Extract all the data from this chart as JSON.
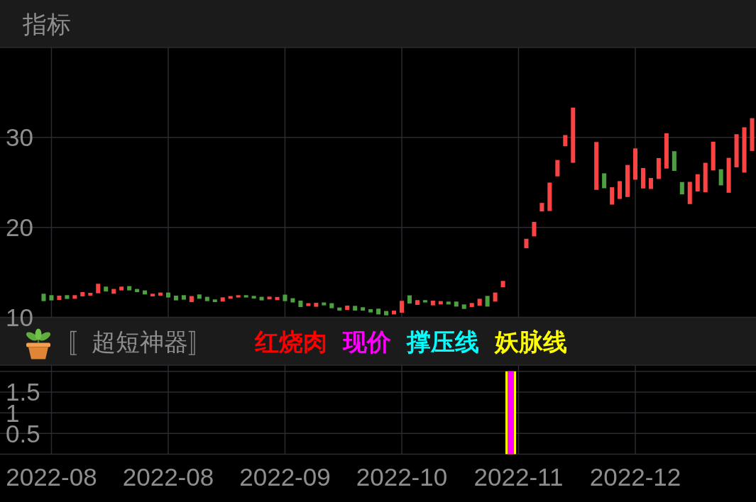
{
  "chart_data": [
    {
      "type": "candlestick",
      "title": "指标",
      "categories": [
        null,
        "2022-08",
        null,
        null,
        null,
        null,
        null,
        null,
        null,
        null,
        null,
        null,
        null,
        null,
        null,
        null,
        "2022-08",
        null,
        null,
        null,
        null,
        null,
        null,
        null,
        null,
        null,
        null,
        null,
        null,
        null,
        null,
        "2022-09",
        null,
        null,
        null,
        null,
        null,
        null,
        null,
        null,
        null,
        null,
        null,
        null,
        null,
        null,
        "2022-10",
        null,
        null,
        null,
        null,
        null,
        null,
        null,
        null,
        null,
        null,
        null,
        null,
        null,
        null,
        "2022-11",
        null,
        null,
        null,
        null,
        null,
        null,
        null,
        null,
        null,
        null,
        null,
        null,
        null,
        null,
        "2022-12",
        null,
        null,
        null,
        null,
        null,
        null,
        null,
        null,
        null,
        null,
        null,
        null,
        null,
        null,
        null
      ],
      "ohlc": [
        [
          12.62,
          12.62,
          11.8,
          11.8
        ],
        [
          12.46,
          12.46,
          11.88,
          11.88
        ],
        [
          11.93,
          12.41,
          11.93,
          12.41
        ],
        [
          12.46,
          12.46,
          12.04,
          12.04
        ],
        [
          12.06,
          12.46,
          12.06,
          12.46
        ],
        [
          12.33,
          12.8,
          12.33,
          12.8
        ],
        [
          12.41,
          12.72,
          12.41,
          12.72
        ],
        [
          12.67,
          13.73,
          12.67,
          13.73
        ],
        [
          13.41,
          13.41,
          12.88,
          12.88
        ],
        [
          12.62,
          13.15,
          12.62,
          13.15
        ],
        [
          12.99,
          13.41,
          12.99,
          13.41
        ],
        [
          13.47,
          13.47,
          12.99,
          12.99
        ],
        [
          13.15,
          13.15,
          12.8,
          12.8
        ],
        [
          12.99,
          12.99,
          12.54,
          12.54
        ],
        [
          12.33,
          12.62,
          12.33,
          12.62
        ],
        [
          12.41,
          12.75,
          12.41,
          12.75
        ],
        [
          12.75,
          12.75,
          12.2,
          12.2
        ],
        [
          12.41,
          12.41,
          11.88,
          11.88
        ],
        [
          12.46,
          12.46,
          11.96,
          11.96
        ],
        [
          11.69,
          12.36,
          11.69,
          12.36
        ],
        [
          12.54,
          12.54,
          12.06,
          12.06
        ],
        [
          12.28,
          12.28,
          11.8,
          11.8
        ],
        [
          11.99,
          11.99,
          11.69,
          11.69
        ],
        [
          11.75,
          12.22,
          11.75,
          12.22
        ],
        [
          12.06,
          12.36,
          12.06,
          12.36
        ],
        [
          12.2,
          12.46,
          12.2,
          12.46
        ],
        [
          12.46,
          12.46,
          12.2,
          12.2
        ],
        [
          12.38,
          12.38,
          12.09,
          12.09
        ],
        [
          12.28,
          12.28,
          11.88,
          11.88
        ],
        [
          11.99,
          12.3,
          11.99,
          12.3
        ],
        [
          11.91,
          12.26,
          11.91,
          12.26
        ],
        [
          12.52,
          12.52,
          11.8,
          11.8
        ],
        [
          12.12,
          12.12,
          11.65,
          11.65
        ],
        [
          11.85,
          11.85,
          11.14,
          11.14
        ],
        [
          11.25,
          11.57,
          11.25,
          11.57
        ],
        [
          11.17,
          11.61,
          11.17,
          11.61
        ],
        [
          11.65,
          11.65,
          11.33,
          11.33
        ],
        [
          11.57,
          11.57,
          11.01,
          11.01
        ],
        [
          11.09,
          11.09,
          10.74,
          10.74
        ],
        [
          10.82,
          11.3,
          10.82,
          11.3
        ],
        [
          11.27,
          11.27,
          10.74,
          10.74
        ],
        [
          11.12,
          11.12,
          10.74,
          10.74
        ],
        [
          10.9,
          10.9,
          10.54,
          10.54
        ],
        [
          10.96,
          10.96,
          10.32,
          10.32
        ],
        [
          10.7,
          10.7,
          10.22,
          10.22
        ],
        [
          10.32,
          10.74,
          10.32,
          10.74
        ],
        [
          10.51,
          11.83,
          10.51,
          11.83
        ],
        [
          12.44,
          12.44,
          11.53,
          11.53
        ],
        [
          11.38,
          11.91,
          11.38,
          11.91
        ],
        [
          11.91,
          11.91,
          11.65,
          11.65
        ],
        [
          11.33,
          11.85,
          11.33,
          11.85
        ],
        [
          11.43,
          11.8,
          11.43,
          11.8
        ],
        [
          11.75,
          11.75,
          11.43,
          11.43
        ],
        [
          11.75,
          11.75,
          11.19,
          11.19
        ],
        [
          11.43,
          11.43,
          10.93,
          10.93
        ],
        [
          11.14,
          11.59,
          11.14,
          11.59
        ],
        [
          11.3,
          12.06,
          11.3,
          12.06
        ],
        [
          12.38,
          12.38,
          11.19,
          11.19
        ],
        [
          11.75,
          12.75,
          11.75,
          12.75
        ],
        [
          13.35,
          14.04,
          13.35,
          14.04
        ],
        null,
        null,
        [
          17.68,
          18.73,
          17.68,
          18.73
        ],
        [
          19.0,
          20.61,
          19.0,
          20.61
        ],
        [
          21.77,
          22.72,
          21.77,
          22.72
        ],
        [
          21.82,
          24.98,
          21.82,
          24.98
        ],
        [
          25.67,
          27.49,
          25.67,
          27.49
        ],
        [
          29.02,
          30.26,
          29.02,
          30.26
        ],
        [
          27.18,
          33.32,
          27.18,
          33.32
        ],
        null,
        null,
        [
          24.17,
          29.49,
          24.17,
          29.49
        ],
        [
          26.01,
          26.01,
          24.35,
          24.35
        ],
        [
          22.53,
          24.46,
          22.53,
          24.46
        ],
        [
          23.16,
          25.14,
          23.16,
          25.14
        ],
        [
          23.38,
          26.94,
          23.38,
          26.94
        ],
        [
          25.3,
          28.78,
          25.3,
          28.78
        ],
        [
          24.33,
          26.6,
          24.33,
          26.6
        ],
        [
          24.27,
          25.49,
          24.27,
          25.49
        ],
        [
          25.38,
          27.71,
          25.38,
          27.71
        ],
        [
          26.54,
          30.47,
          26.54,
          30.47
        ],
        [
          28.47,
          28.47,
          26.28,
          26.28
        ],
        [
          25.04,
          25.04,
          23.67,
          23.67
        ],
        [
          22.59,
          25.06,
          22.59,
          25.06
        ],
        [
          23.99,
          25.91,
          23.99,
          25.91
        ],
        [
          23.91,
          27.18,
          23.91,
          27.18
        ],
        [
          26.33,
          29.53,
          26.33,
          29.53
        ],
        [
          26.46,
          26.46,
          24.67,
          24.67
        ],
        [
          23.85,
          27.73,
          23.85,
          27.73
        ],
        [
          26.68,
          30.36,
          26.68,
          30.36
        ],
        [
          26.09,
          31.13,
          26.09,
          31.13
        ],
        [
          28.5,
          32.14,
          28.5,
          32.14
        ]
      ],
      "colors": [
        "#4ca040",
        "#4ca040",
        "#fa4444",
        "#4ca040",
        "#fa4444",
        "#fa4444",
        "#fa4444",
        "#fa4444",
        "#4ca040",
        "#fa4444",
        "#fa4444",
        "#4ca040",
        "#4ca040",
        "#4ca040",
        "#fa4444",
        "#fa4444",
        "#4ca040",
        "#4ca040",
        "#4ca040",
        "#fa4444",
        "#4ca040",
        "#4ca040",
        "#4ca040",
        "#fa4444",
        "#fa4444",
        "#fa4444",
        "#4ca040",
        "#4ca040",
        "#4ca040",
        "#fa4444",
        "#fa4444",
        "#4ca040",
        "#4ca040",
        "#4ca040",
        "#fa4444",
        "#fa4444",
        "#4ca040",
        "#4ca040",
        "#4ca040",
        "#fa4444",
        "#4ca040",
        "#4ca040",
        "#4ca040",
        "#4ca040",
        "#4ca040",
        "#fa4444",
        "#fa4444",
        "#4ca040",
        "#fa4444",
        "#4ca040",
        "#fa4444",
        "#fa4444",
        "#4ca040",
        "#4ca040",
        "#4ca040",
        "#fa4444",
        "#fa4444",
        "#4ca040",
        "#fa4444",
        "#fa4444",
        null,
        null,
        "#fa4444",
        "#fa4444",
        "#fa4444",
        "#fa4444",
        "#fa4444",
        "#fa4444",
        "#fa4444",
        null,
        null,
        "#fa4444",
        "#4ca040",
        "#fa4444",
        "#fa4444",
        "#fa4444",
        "#fa4444",
        "#fa4444",
        "#fa4444",
        "#fa4444",
        "#fa4444",
        "#4ca040",
        "#4ca040",
        "#fa4444",
        "#fa4444",
        "#fa4444",
        "#fa4444",
        "#4ca040",
        "#fa4444",
        "#fa4444",
        "#fa4444",
        "#fa4444"
      ],
      "ylim": [
        10,
        40
      ],
      "yticks": [
        10,
        20,
        30
      ],
      "grid": true,
      "tick_labels": "y"
    },
    {
      "type": "bar",
      "title": "〚超短神器〛",
      "categories": [
        null,
        "2022-08",
        null,
        null,
        null,
        null,
        null,
        null,
        null,
        null,
        null,
        null,
        null,
        null,
        null,
        null,
        "2022-08",
        null,
        null,
        null,
        null,
        null,
        null,
        null,
        null,
        null,
        null,
        null,
        null,
        null,
        null,
        "2022-09",
        null,
        null,
        null,
        null,
        null,
        null,
        null,
        null,
        null,
        null,
        null,
        null,
        null,
        null,
        "2022-10",
        null,
        null,
        null,
        null,
        null,
        null,
        null,
        null,
        null,
        null,
        null,
        null,
        null,
        null,
        "2022-11",
        null,
        null,
        null,
        null,
        null,
        null,
        null,
        null,
        null,
        null,
        null,
        null,
        null,
        null,
        "2022-12",
        null,
        null,
        null,
        null,
        null,
        null,
        null,
        null,
        null,
        null,
        null,
        null,
        null,
        null,
        null
      ],
      "series": [
        {
          "name": "红烧肉",
          "color": "#ff0000",
          "values": [
            null,
            null,
            null,
            null,
            null,
            null,
            null,
            null,
            null,
            null,
            null,
            null,
            null,
            null,
            null,
            null,
            null,
            null,
            null,
            null,
            null,
            null,
            null,
            null,
            null,
            null,
            null,
            null,
            null,
            null,
            null,
            null,
            null,
            null,
            null,
            null,
            null,
            null,
            null,
            null,
            null,
            null,
            null,
            null,
            null,
            null,
            null,
            null,
            null,
            null,
            null,
            null,
            null,
            null,
            null,
            null,
            null,
            null,
            null,
            null,
            null,
            null,
            null,
            null,
            null,
            null,
            null,
            null,
            null,
            null,
            null,
            null,
            null,
            null,
            null,
            null,
            null,
            null,
            null,
            null,
            null,
            null,
            null,
            null,
            null,
            null,
            null,
            null,
            null,
            null,
            null,
            null
          ]
        },
        {
          "name": "现价",
          "color": "#ff00ff",
          "values": [
            null,
            null,
            null,
            null,
            null,
            null,
            null,
            null,
            null,
            null,
            null,
            null,
            null,
            null,
            null,
            null,
            null,
            null,
            null,
            null,
            null,
            null,
            null,
            null,
            null,
            null,
            null,
            null,
            null,
            null,
            null,
            null,
            null,
            null,
            null,
            null,
            null,
            null,
            null,
            null,
            null,
            null,
            null,
            null,
            null,
            null,
            null,
            null,
            null,
            null,
            null,
            null,
            null,
            null,
            null,
            null,
            null,
            null,
            null,
            null,
            2,
            null,
            null,
            null,
            null,
            null,
            null,
            null,
            null,
            null,
            null,
            null,
            null,
            null,
            null,
            null,
            null,
            null,
            null,
            null,
            null,
            null,
            null,
            null,
            null,
            null,
            null,
            null,
            null,
            null,
            null,
            null
          ]
        },
        {
          "name": "撑压线",
          "color": "#00ffff",
          "values": [
            null,
            null,
            null,
            null,
            null,
            null,
            null,
            null,
            null,
            null,
            null,
            null,
            null,
            null,
            null,
            null,
            null,
            null,
            null,
            null,
            null,
            null,
            null,
            null,
            null,
            null,
            null,
            null,
            null,
            null,
            null,
            null,
            null,
            null,
            null,
            null,
            null,
            null,
            null,
            null,
            null,
            null,
            null,
            null,
            null,
            null,
            null,
            null,
            null,
            null,
            null,
            null,
            null,
            null,
            null,
            null,
            null,
            null,
            null,
            null,
            null,
            null,
            null,
            null,
            null,
            null,
            null,
            null,
            null,
            null,
            null,
            null,
            null,
            null,
            null,
            null,
            null,
            null,
            null,
            null,
            null,
            null,
            null,
            null,
            null,
            null,
            null,
            null,
            null,
            null,
            null,
            null
          ]
        },
        {
          "name": "妖脉线",
          "color": "#ffff00",
          "values": [
            null,
            null,
            null,
            null,
            null,
            null,
            null,
            null,
            null,
            null,
            null,
            null,
            null,
            null,
            null,
            null,
            null,
            null,
            null,
            null,
            null,
            null,
            null,
            null,
            null,
            null,
            null,
            null,
            null,
            null,
            null,
            null,
            null,
            null,
            null,
            null,
            null,
            null,
            null,
            null,
            null,
            null,
            null,
            null,
            null,
            null,
            null,
            null,
            null,
            null,
            null,
            null,
            null,
            null,
            null,
            null,
            null,
            null,
            null,
            null,
            2,
            null,
            null,
            null,
            null,
            null,
            null,
            null,
            null,
            null,
            null,
            null,
            null,
            null,
            null,
            null,
            null,
            null,
            null,
            null,
            null,
            null,
            null,
            null,
            null,
            null,
            null,
            null,
            null,
            null,
            null,
            null
          ]
        }
      ],
      "ylim": [
        0,
        2.15
      ],
      "yticks": [
        {
          "value": 0,
          "label": null
        },
        0.5,
        1,
        1.5,
        {
          "value": 2,
          "label": null
        }
      ],
      "grid": true
    }
  ]
}
